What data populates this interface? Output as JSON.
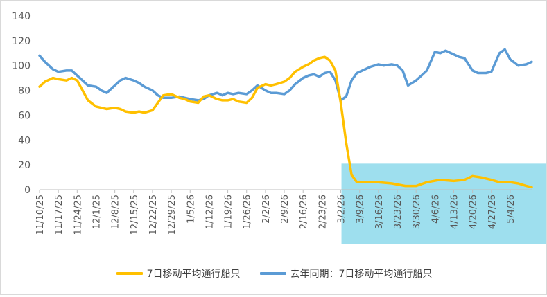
{
  "chart_data": {
    "type": "line",
    "title": "",
    "xlabel": "",
    "ylabel": "",
    "ylim": [
      0,
      140
    ],
    "yticks": [
      0,
      20,
      40,
      60,
      80,
      100,
      120,
      140
    ],
    "grid": false,
    "legend_position": "bottom",
    "x_tick_labels": [
      "11/10/25",
      "11/17/25",
      "11/24/25",
      "12/1/25",
      "12/8/25",
      "12/15/25",
      "12/22/25",
      "12/29/25",
      "1/5/26",
      "1/12/26",
      "1/19/26",
      "1/26/26",
      "2/2/26",
      "2/9/26",
      "2/16/26",
      "2/23/26",
      "3/2/26",
      "3/9/26",
      "3/16/26",
      "3/23/26",
      "3/30/26",
      "4/6/26",
      "4/13/26",
      "4/20/26",
      "4/27/26",
      "5/4/26"
    ],
    "x_start": "11/10/25",
    "x_end": "5/12/26",
    "highlight": {
      "from": "3/2/26",
      "to": "5/12/26",
      "ymax": 21,
      "color": "#9edfee"
    },
    "series": [
      {
        "name": "7日移动平均通行船只",
        "color": "#ffc000",
        "x": [
          "11/10/25",
          "11/12/25",
          "11/15/25",
          "11/17/25",
          "11/20/25",
          "11/22/25",
          "11/24/25",
          "11/26/25",
          "11/28/25",
          "12/1/25",
          "12/3/25",
          "12/5/25",
          "12/8/25",
          "12/10/25",
          "12/12/25",
          "12/15/25",
          "12/17/25",
          "12/19/25",
          "12/22/25",
          "12/24/25",
          "12/26/25",
          "12/29/25",
          "1/1/26",
          "1/3/26",
          "1/5/26",
          "1/8/26",
          "1/10/26",
          "1/12/26",
          "1/15/26",
          "1/17/26",
          "1/19/26",
          "1/21/26",
          "1/23/26",
          "1/26/26",
          "1/28/26",
          "1/30/26",
          "2/2/26",
          "2/4/26",
          "2/6/26",
          "2/9/26",
          "2/11/26",
          "2/13/26",
          "2/16/26",
          "2/18/26",
          "2/20/26",
          "2/22/26",
          "2/24/26",
          "2/26/26",
          "2/28/26",
          "3/2/26",
          "3/4/26",
          "3/6/26",
          "3/8/26",
          "3/11/26",
          "3/16/26",
          "3/21/26",
          "3/26/26",
          "3/30/26",
          "4/3/26",
          "4/8/26",
          "4/13/26",
          "4/17/26",
          "4/20/26",
          "4/23/26",
          "4/27/26",
          "4/30/26",
          "5/4/26",
          "5/7/26",
          "5/10/26",
          "5/12/26"
        ],
        "values": [
          83,
          87,
          90,
          89,
          88,
          90,
          88,
          80,
          72,
          67,
          66,
          65,
          66,
          65,
          63,
          62,
          63,
          62,
          64,
          70,
          76,
          77,
          74,
          73,
          71,
          70,
          75,
          76,
          73,
          72,
          72,
          73,
          71,
          70,
          74,
          82,
          85,
          84,
          85,
          87,
          90,
          95,
          99,
          101,
          104,
          106,
          107,
          104,
          96,
          70,
          38,
          12,
          6,
          6,
          6,
          5,
          3,
          3,
          6,
          8,
          7,
          8,
          11,
          10,
          8,
          6,
          6,
          5,
          3,
          2
        ]
      },
      {
        "name": "去年同期：7日移动平均通行船只",
        "color": "#5b9bd5",
        "x": [
          "11/10/25",
          "11/12/25",
          "11/15/25",
          "11/17/25",
          "11/20/25",
          "11/22/25",
          "11/24/25",
          "11/26/25",
          "11/28/25",
          "12/1/25",
          "12/3/25",
          "12/5/25",
          "12/8/25",
          "12/10/25",
          "12/12/25",
          "12/15/25",
          "12/17/25",
          "12/19/25",
          "12/22/25",
          "12/24/25",
          "12/26/25",
          "12/29/25",
          "1/1/26",
          "1/3/26",
          "1/5/26",
          "1/8/26",
          "1/10/26",
          "1/12/26",
          "1/15/26",
          "1/17/26",
          "1/19/26",
          "1/21/26",
          "1/23/26",
          "1/26/26",
          "1/28/26",
          "1/30/26",
          "2/2/26",
          "2/4/26",
          "2/6/26",
          "2/9/26",
          "2/11/26",
          "2/13/26",
          "2/16/26",
          "2/18/26",
          "2/20/26",
          "2/22/26",
          "2/24/26",
          "2/26/26",
          "2/28/26",
          "3/2/26",
          "3/4/26",
          "3/6/26",
          "3/8/26",
          "3/11/26",
          "3/13/26",
          "3/16/26",
          "3/18/26",
          "3/21/26",
          "3/23/26",
          "3/25/26",
          "3/27/26",
          "3/30/26",
          "4/1/26",
          "4/3/26",
          "4/6/26",
          "4/8/26",
          "4/10/26",
          "4/13/26",
          "4/15/26",
          "4/17/26",
          "4/20/26",
          "4/22/26",
          "4/25/26",
          "4/27/26",
          "4/30/26",
          "5/2/26",
          "5/4/26",
          "5/7/26",
          "5/10/26",
          "5/12/26"
        ],
        "values": [
          108,
          103,
          97,
          95,
          96,
          96,
          92,
          88,
          84,
          83,
          80,
          78,
          84,
          88,
          90,
          88,
          86,
          83,
          80,
          76,
          74,
          74,
          75,
          74,
          73,
          72,
          73,
          76,
          78,
          76,
          78,
          77,
          78,
          77,
          80,
          84,
          80,
          78,
          78,
          77,
          80,
          85,
          90,
          92,
          93,
          91,
          94,
          95,
          88,
          72,
          75,
          88,
          94,
          97,
          99,
          101,
          100,
          101,
          100,
          96,
          84,
          88,
          92,
          96,
          111,
          110,
          112,
          109,
          107,
          106,
          96,
          94,
          94,
          95,
          110,
          113,
          105,
          100,
          101,
          103
        ]
      }
    ]
  }
}
